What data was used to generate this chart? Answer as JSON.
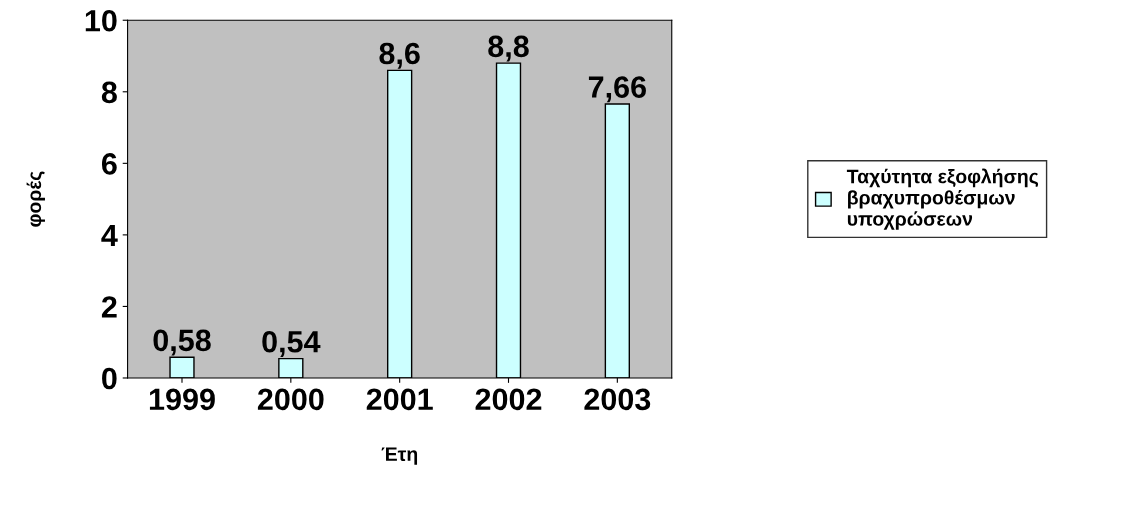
{
  "chart_data": {
    "type": "bar",
    "xlabel": "Έτη",
    "ylabel": "φορές",
    "categories": [
      "1999",
      "2000",
      "2001",
      "2002",
      "2003"
    ],
    "series": [
      {
        "name": "Ταχύτητα εξοφλήσης βραχυπροθέσμων υποχρώσεων",
        "color": "#ccffff",
        "values": [
          0.58,
          0.54,
          8.6,
          8.8,
          7.66
        ],
        "value_labels": [
          "0,58",
          "0,54",
          "8,6",
          "8,8",
          "7,66"
        ]
      }
    ],
    "ylim": [
      0,
      10
    ],
    "yticks": [
      0,
      2,
      4,
      6,
      8,
      10
    ],
    "grid": false,
    "legend": "right"
  }
}
